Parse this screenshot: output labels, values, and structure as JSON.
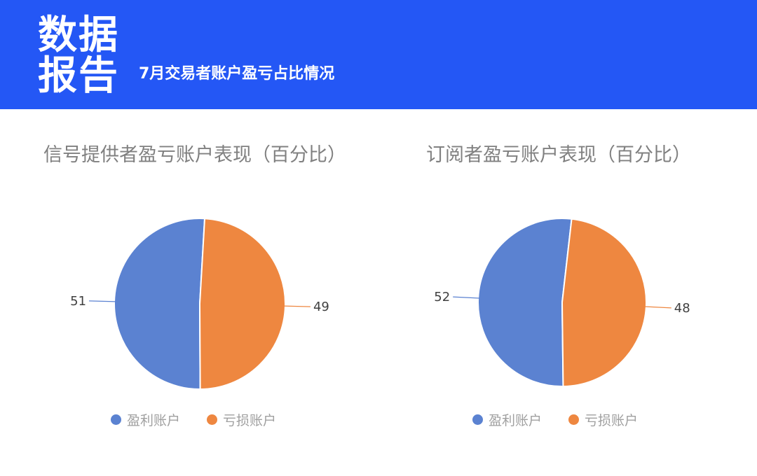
{
  "header": {
    "title_line1": "数据",
    "title_line2": "报告",
    "subtitle": "7月交易者账户盈亏占比情况",
    "background_color": "#2457f5"
  },
  "legend": {
    "profit_label": "盈利账户",
    "loss_label": "亏损账户"
  },
  "colors": {
    "profit": "#5b82d1",
    "loss": "#ee8740",
    "leader_profit": "#5b82d1",
    "leader_loss": "#ee8740"
  },
  "chart_data": [
    {
      "type": "pie",
      "title": "信号提供者盈亏账户表现（百分比）",
      "categories": [
        "盈利账户",
        "亏损账户"
      ],
      "values": [
        51,
        49
      ],
      "data_labels": [
        "51",
        "49"
      ],
      "legend_position": "bottom"
    },
    {
      "type": "pie",
      "title": "订阅者盈亏账户表现（百分比）",
      "categories": [
        "盈利账户",
        "亏损账户"
      ],
      "values": [
        52,
        48
      ],
      "data_labels": [
        "52",
        "48"
      ],
      "legend_position": "bottom"
    }
  ]
}
